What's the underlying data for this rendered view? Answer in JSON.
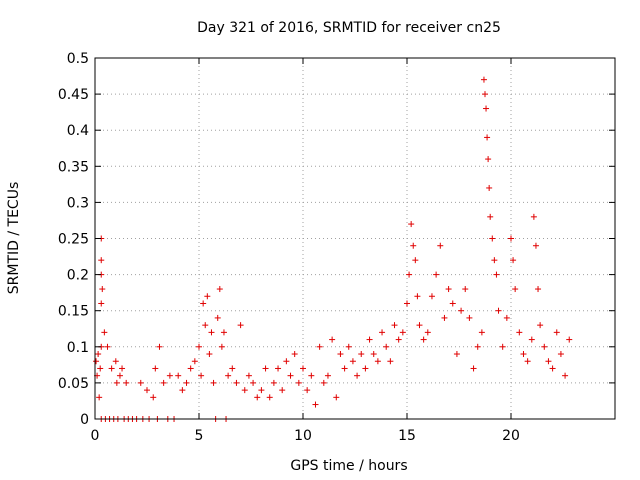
{
  "chart_data": {
    "type": "scatter",
    "title": "Day 321 of 2016, SRMTID for receiver cn25",
    "xlabel": "GPS time / hours",
    "ylabel": "SRMTID / TECUs",
    "xlim": [
      0,
      25
    ],
    "ylim": [
      0,
      0.5
    ],
    "grid": true,
    "marker": "+",
    "color": "#e00000",
    "x_ticks": [
      {
        "value": 0,
        "label": "0"
      },
      {
        "value": 5,
        "label": "5"
      },
      {
        "value": 10,
        "label": "10"
      },
      {
        "value": 15,
        "label": "15"
      },
      {
        "value": 20,
        "label": "20"
      }
    ],
    "y_ticks": [
      {
        "value": 0,
        "label": "0"
      },
      {
        "value": 0.05,
        "label": "0.05"
      },
      {
        "value": 0.1,
        "label": "0.1"
      },
      {
        "value": 0.15,
        "label": "0.15"
      },
      {
        "value": 0.2,
        "label": "0.2"
      },
      {
        "value": 0.25,
        "label": "0.25"
      },
      {
        "value": 0.3,
        "label": "0.3"
      },
      {
        "value": 0.35,
        "label": "0.35"
      },
      {
        "value": 0.4,
        "label": "0.4"
      },
      {
        "value": 0.45,
        "label": "0.45"
      },
      {
        "value": 0.5,
        "label": "0.5"
      }
    ],
    "series": [
      {
        "name": "SRMTID",
        "points": [
          [
            0.05,
            0.08
          ],
          [
            0.1,
            0.06
          ],
          [
            0.15,
            0.09
          ],
          [
            0.2,
            0.03
          ],
          [
            0.25,
            0.07
          ],
          [
            0.3,
            0.0
          ],
          [
            0.3,
            0.1
          ],
          [
            0.3,
            0.16
          ],
          [
            0.3,
            0.2
          ],
          [
            0.3,
            0.22
          ],
          [
            0.3,
            0.25
          ],
          [
            0.35,
            0.18
          ],
          [
            0.45,
            0.12
          ],
          [
            0.5,
            0.0
          ],
          [
            0.6,
            0.1
          ],
          [
            0.7,
            0.0
          ],
          [
            0.8,
            0.07
          ],
          [
            0.9,
            0.0
          ],
          [
            1.0,
            0.08
          ],
          [
            1.05,
            0.05
          ],
          [
            1.1,
            0.0
          ],
          [
            1.2,
            0.06
          ],
          [
            1.3,
            0.07
          ],
          [
            1.4,
            0.0
          ],
          [
            1.5,
            0.05
          ],
          [
            1.6,
            0.0
          ],
          [
            1.8,
            0.0
          ],
          [
            2.0,
            0.0
          ],
          [
            2.2,
            0.05
          ],
          [
            2.3,
            0.0
          ],
          [
            2.5,
            0.04
          ],
          [
            2.6,
            0.0
          ],
          [
            2.8,
            0.03
          ],
          [
            2.9,
            0.07
          ],
          [
            3.0,
            0.0
          ],
          [
            3.1,
            0.1
          ],
          [
            3.3,
            0.05
          ],
          [
            3.5,
            0.0
          ],
          [
            3.6,
            0.06
          ],
          [
            3.8,
            0.0
          ],
          [
            4.0,
            0.06
          ],
          [
            4.2,
            0.04
          ],
          [
            4.4,
            0.05
          ],
          [
            4.6,
            0.07
          ],
          [
            4.8,
            0.08
          ],
          [
            5.0,
            0.1
          ],
          [
            5.1,
            0.06
          ],
          [
            5.2,
            0.16
          ],
          [
            5.3,
            0.13
          ],
          [
            5.4,
            0.17
          ],
          [
            5.5,
            0.09
          ],
          [
            5.6,
            0.12
          ],
          [
            5.7,
            0.05
          ],
          [
            5.8,
            0.0
          ],
          [
            5.9,
            0.14
          ],
          [
            6.0,
            0.18
          ],
          [
            6.1,
            0.1
          ],
          [
            6.2,
            0.12
          ],
          [
            6.3,
            0.0
          ],
          [
            6.4,
            0.06
          ],
          [
            6.6,
            0.07
          ],
          [
            6.8,
            0.05
          ],
          [
            7.0,
            0.13
          ],
          [
            7.2,
            0.04
          ],
          [
            7.4,
            0.06
          ],
          [
            7.6,
            0.05
          ],
          [
            7.8,
            0.03
          ],
          [
            8.0,
            0.04
          ],
          [
            8.2,
            0.07
          ],
          [
            8.4,
            0.03
          ],
          [
            8.6,
            0.05
          ],
          [
            8.8,
            0.07
          ],
          [
            9.0,
            0.04
          ],
          [
            9.2,
            0.08
          ],
          [
            9.4,
            0.06
          ],
          [
            9.6,
            0.09
          ],
          [
            9.8,
            0.05
          ],
          [
            10.0,
            0.07
          ],
          [
            10.2,
            0.04
          ],
          [
            10.4,
            0.06
          ],
          [
            10.6,
            0.02
          ],
          [
            10.8,
            0.1
          ],
          [
            11.0,
            0.05
          ],
          [
            11.2,
            0.06
          ],
          [
            11.4,
            0.11
          ],
          [
            11.6,
            0.03
          ],
          [
            11.8,
            0.09
          ],
          [
            12.0,
            0.07
          ],
          [
            12.2,
            0.1
          ],
          [
            12.4,
            0.08
          ],
          [
            12.6,
            0.06
          ],
          [
            12.8,
            0.09
          ],
          [
            13.0,
            0.07
          ],
          [
            13.2,
            0.11
          ],
          [
            13.4,
            0.09
          ],
          [
            13.6,
            0.08
          ],
          [
            13.8,
            0.12
          ],
          [
            14.0,
            0.1
          ],
          [
            14.2,
            0.08
          ],
          [
            14.4,
            0.13
          ],
          [
            14.6,
            0.11
          ],
          [
            14.8,
            0.12
          ],
          [
            15.0,
            0.16
          ],
          [
            15.1,
            0.2
          ],
          [
            15.2,
            0.27
          ],
          [
            15.3,
            0.24
          ],
          [
            15.4,
            0.22
          ],
          [
            15.5,
            0.17
          ],
          [
            15.6,
            0.13
          ],
          [
            15.8,
            0.11
          ],
          [
            16.0,
            0.12
          ],
          [
            16.2,
            0.17
          ],
          [
            16.4,
            0.2
          ],
          [
            16.6,
            0.24
          ],
          [
            16.8,
            0.14
          ],
          [
            17.0,
            0.18
          ],
          [
            17.2,
            0.16
          ],
          [
            17.4,
            0.09
          ],
          [
            17.6,
            0.15
          ],
          [
            17.8,
            0.18
          ],
          [
            18.0,
            0.14
          ],
          [
            18.2,
            0.07
          ],
          [
            18.4,
            0.1
          ],
          [
            18.6,
            0.12
          ],
          [
            18.7,
            0.47
          ],
          [
            18.75,
            0.45
          ],
          [
            18.8,
            0.43
          ],
          [
            18.85,
            0.39
          ],
          [
            18.9,
            0.36
          ],
          [
            18.95,
            0.32
          ],
          [
            19.0,
            0.28
          ],
          [
            19.1,
            0.25
          ],
          [
            19.2,
            0.22
          ],
          [
            19.3,
            0.2
          ],
          [
            19.4,
            0.15
          ],
          [
            19.6,
            0.1
          ],
          [
            19.8,
            0.14
          ],
          [
            20.0,
            0.25
          ],
          [
            20.1,
            0.22
          ],
          [
            20.2,
            0.18
          ],
          [
            20.4,
            0.12
          ],
          [
            20.6,
            0.09
          ],
          [
            20.8,
            0.08
          ],
          [
            21.0,
            0.11
          ],
          [
            21.1,
            0.28
          ],
          [
            21.2,
            0.24
          ],
          [
            21.3,
            0.18
          ],
          [
            21.4,
            0.13
          ],
          [
            21.6,
            0.1
          ],
          [
            21.8,
            0.08
          ],
          [
            22.0,
            0.07
          ],
          [
            22.2,
            0.12
          ],
          [
            22.4,
            0.09
          ],
          [
            22.6,
            0.06
          ],
          [
            22.8,
            0.11
          ]
        ]
      }
    ]
  }
}
